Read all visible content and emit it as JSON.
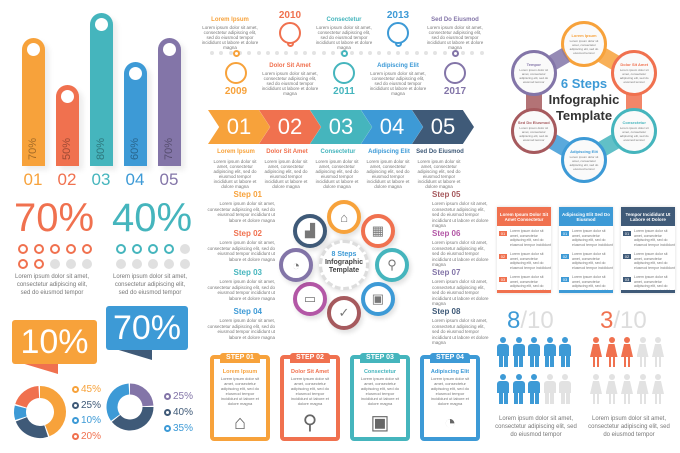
{
  "colors": {
    "orange": "#f7a23b",
    "red": "#f0714f",
    "teal": "#45b5bd",
    "blue": "#3d9ad6",
    "purple": "#8375a8",
    "navy": "#3f5a78",
    "maroon": "#a65a5e",
    "magenta": "#b357a6",
    "grey": "#e0e0e0"
  },
  "lorem": "Lorem ipsum dolor sit amet, consectetur adipiscing elit, sed do eiusmod tempor incididunt ut labore et dolore magna",
  "lorem_short": "Lorem ipsum dolor sit amet, consectetur adipiscing elit, sed do eiusmod tempor",
  "bar_chart": {
    "bars": [
      {
        "label": "01",
        "value": "70%",
        "color": "#f7a23b"
      },
      {
        "label": "02",
        "value": "50%",
        "color": "#f0714f"
      },
      {
        "label": "03",
        "value": "80%",
        "color": "#45b5bd"
      },
      {
        "label": "04",
        "value": "60%",
        "color": "#3d9ad6"
      },
      {
        "label": "05",
        "value": "70%",
        "color": "#8375a8"
      }
    ]
  },
  "dot_stats": [
    {
      "value": "70%",
      "filled": 7,
      "total": 10,
      "color": "#f0714f"
    },
    {
      "value": "40%",
      "filled": 4,
      "total": 10,
      "color": "#45b5bd"
    }
  ],
  "banners": [
    {
      "value": "10%",
      "color": "#f7a23b"
    },
    {
      "value": "70%",
      "color": "#3d9ad6"
    }
  ],
  "donuts": [
    {
      "slices": [
        {
          "value": "45%",
          "color": "#f7a23b"
        },
        {
          "value": "25%",
          "color": "#3f5a78"
        },
        {
          "value": "10%",
          "color": "#3d9ad6"
        },
        {
          "value": "20%",
          "color": "#f0714f"
        }
      ]
    },
    {
      "slices": [
        {
          "value": "25%",
          "color": "#8375a8"
        },
        {
          "value": "40%",
          "color": "#3f5a78"
        },
        {
          "value": "35%",
          "color": "#3d9ad6"
        }
      ]
    }
  ],
  "timeline": {
    "items": [
      {
        "year": "2009",
        "title": "Lorem Ipsum",
        "icon": "house-icon",
        "color": "#f7a23b"
      },
      {
        "year": "2010",
        "title": "Dolor Sit Amet",
        "icon": "calendar-icon",
        "color": "#f0714f"
      },
      {
        "year": "2011",
        "title": "Consectetur",
        "icon": "magnifier-icon",
        "color": "#45b5bd"
      },
      {
        "year": "2013",
        "title": "Adipiscing Elit",
        "icon": "briefcase-icon",
        "color": "#3d9ad6"
      },
      {
        "year": "2017",
        "title": "Sed Do Eiusmod",
        "icon": "chart-icon",
        "color": "#8375a8"
      }
    ]
  },
  "arrows": {
    "items": [
      {
        "num": "01",
        "title": "Lorem Ipsum",
        "color": "#f7a23b"
      },
      {
        "num": "02",
        "title": "Dolor Sit Amet",
        "color": "#f0714f"
      },
      {
        "num": "03",
        "title": "Consectetur",
        "color": "#45b5bd"
      },
      {
        "num": "04",
        "title": "Adipiscing Elit",
        "color": "#3d9ad6"
      },
      {
        "num": "05",
        "title": "Sed Do Eiusmod",
        "color": "#3f5a78"
      }
    ]
  },
  "eight_steps": {
    "center": [
      "8 Steps",
      "Infographic",
      "Template"
    ],
    "steps": [
      {
        "label": "Step 01",
        "color": "#f7a23b",
        "icon": "house-icon"
      },
      {
        "label": "Step 02",
        "color": "#f0714f",
        "icon": "chart-icon"
      },
      {
        "label": "Step 03",
        "color": "#45b5bd",
        "icon": "pie-chart-icon"
      },
      {
        "label": "Step 04",
        "color": "#3d9ad6",
        "icon": "wallet-icon"
      },
      {
        "label": "Step 05",
        "color": "#a65a5e",
        "icon": "calendar-icon"
      },
      {
        "label": "Step 06",
        "color": "#b357a6",
        "icon": "magnifier-icon"
      },
      {
        "label": "Step 07",
        "color": "#8375a8",
        "icon": "briefcase-icon"
      },
      {
        "label": "Step 08",
        "color": "#3f5a78",
        "icon": "shield-check-icon"
      }
    ]
  },
  "step_cards": [
    {
      "step": "STEP 01",
      "title": "Lorem Ipsum",
      "color": "#f7a23b",
      "icon": "house-icon"
    },
    {
      "step": "STEP 02",
      "title": "Dolor Sit Amet",
      "color": "#f0714f",
      "icon": "magnifier-icon"
    },
    {
      "step": "STEP 03",
      "title": "Consectetur",
      "color": "#45b5bd",
      "icon": "briefcase-icon"
    },
    {
      "step": "STEP 04",
      "title": "Adipiscing Elit",
      "color": "#3d9ad6",
      "icon": "pie-chart-icon"
    }
  ],
  "six_steps": {
    "center": [
      "6 Steps",
      "Infographic",
      "Template"
    ],
    "steps": [
      {
        "title": "Lorem Ipsum",
        "color": "#f7a23b"
      },
      {
        "title": "Dolor Sit Amet",
        "color": "#f0714f"
      },
      {
        "title": "Consectetur",
        "color": "#45b5bd"
      },
      {
        "title": "Adipiscing Elit",
        "color": "#3d9ad6"
      },
      {
        "title": "Sed Do Eiusmod",
        "color": "#a65a5e"
      },
      {
        "title": "Tempor",
        "color": "#8375a8"
      }
    ]
  },
  "table": {
    "columns": [
      {
        "header": "Lorem Ipsum Dolor Sit Amet Consectetur",
        "color": "#f0714f",
        "rows": [
          "01",
          "02",
          "03"
        ]
      },
      {
        "header": "Adipiscing Elit Sed Do Eiusmod",
        "color": "#3d9ad6",
        "rows": [
          "01",
          "02",
          "03"
        ]
      },
      {
        "header": "Tempor Incididunt Ut Labore et Dolore",
        "color": "#3f5a78",
        "rows": [
          "01",
          "02",
          "03"
        ]
      }
    ]
  },
  "people": [
    {
      "count": "8",
      "total": "/10",
      "filled": 8,
      "color": "#3d9ad6",
      "figure": "man"
    },
    {
      "count": "3",
      "total": "/10",
      "filled": 3,
      "color": "#f0714f",
      "figure": "woman"
    }
  ]
}
